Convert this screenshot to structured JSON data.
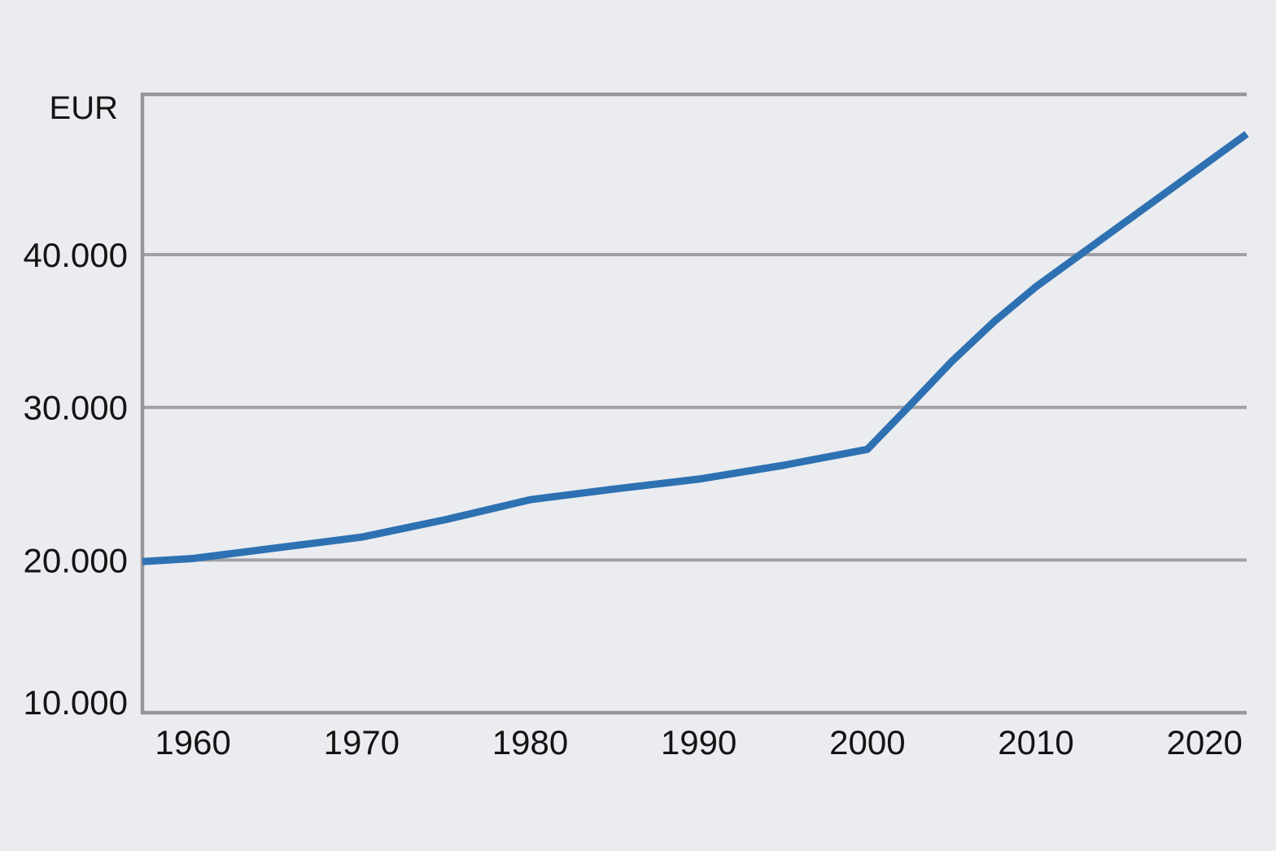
{
  "chart_data": {
    "type": "line",
    "title": "",
    "xlabel": "",
    "ylabel": "EUR",
    "grid_on": true,
    "legend": "none",
    "xlim": [
      1957,
      2022.5
    ],
    "ylim": [
      10000,
      50500
    ],
    "x_ticks": [
      1960,
      1970,
      1980,
      1990,
      2000,
      2010,
      2020
    ],
    "x_tick_labels": [
      "1960",
      "1970",
      "1980",
      "1990",
      "2000",
      "2010",
      "2020"
    ],
    "y_ticks": [
      10000,
      20000,
      30000,
      40000
    ],
    "y_tick_labels": [
      "10.000",
      "20.000",
      "30.000",
      "40.000"
    ],
    "grid_values": [
      20000,
      30000,
      40000
    ],
    "series": [
      {
        "name": "",
        "x": [
          1957,
          1960,
          1965,
          1970,
          1975,
          1980,
          1985,
          1990,
          1995,
          2000,
          2002.5,
          2005,
          2007.5,
          2010,
          2015,
          2020,
          2022.5
        ],
        "values": [
          19900,
          20100,
          20800,
          21500,
          22650,
          23950,
          24650,
          25300,
          26200,
          27250,
          30100,
          33000,
          35600,
          37900,
          41900,
          45900,
          47900
        ]
      }
    ]
  },
  "colors": {
    "background": "#eaecf0",
    "line": "#2e71b2",
    "grid": "#a1a1a5",
    "frame": "#97979b",
    "text": "#141414"
  }
}
